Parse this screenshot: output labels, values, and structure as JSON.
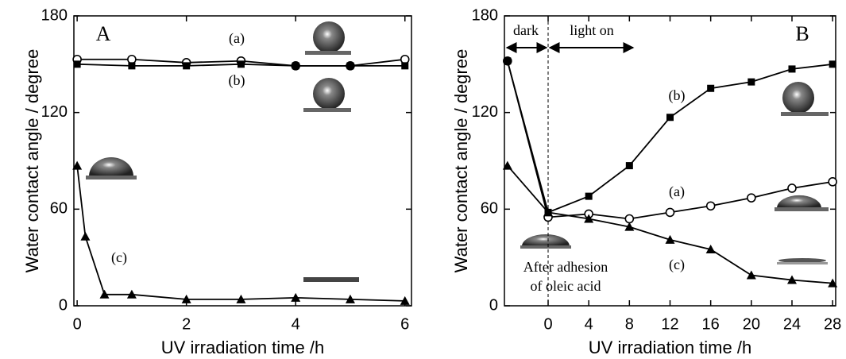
{
  "chart_data": [
    {
      "type": "line",
      "panel_label": "A",
      "x_label": "UV irradiation time /h",
      "y_label": "Water contact angle / degree",
      "xlim": [
        -0.06,
        6.12
      ],
      "xticks": [
        0,
        2,
        4,
        6
      ],
      "ylim": [
        0,
        180
      ],
      "yticks": [
        0,
        60,
        120,
        180
      ],
      "series": [
        {
          "name": "(a)",
          "marker": "circle",
          "color": "#000",
          "x": [
            0,
            1,
            2,
            3,
            4,
            5,
            6
          ],
          "values": [
            153,
            153,
            151,
            152,
            149,
            149,
            153
          ]
        },
        {
          "name": "(b)",
          "marker": "square",
          "color": "#000",
          "x": [
            0,
            1,
            2,
            3,
            4,
            5,
            6
          ],
          "values": [
            150,
            149,
            149,
            150,
            149,
            149,
            149
          ]
        },
        {
          "name": "(c)",
          "marker": "triangle",
          "color": "#000",
          "x": [
            0,
            0.15,
            0.5,
            1,
            2,
            3,
            4,
            5,
            6
          ],
          "values": [
            87,
            43,
            7,
            7,
            4,
            4,
            5,
            4,
            3
          ]
        }
      ]
    },
    {
      "type": "line",
      "panel_label": "B",
      "x_label": "UV irradiation time /h",
      "y_label": "Water contact angle / degree",
      "annotations": [
        "dark",
        "light on",
        "After adhesion",
        "of oleic acid"
      ],
      "xlim": [
        -4.3,
        28.3
      ],
      "xticks": [
        0,
        4,
        8,
        12,
        16,
        20,
        24,
        28
      ],
      "ylim": [
        0,
        180
      ],
      "yticks": [
        0,
        60,
        120,
        180
      ],
      "series": [
        {
          "name": "(a)",
          "marker": "circle",
          "color": "#000",
          "x": [
            -4,
            0,
            4,
            8,
            12,
            16,
            20,
            24,
            28
          ],
          "values": [
            152,
            55,
            57,
            54,
            58,
            62,
            67,
            73,
            77
          ]
        },
        {
          "name": "(b)",
          "marker": "square",
          "color": "#000",
          "x": [
            -4,
            0,
            4,
            8,
            12,
            16,
            20,
            24,
            28
          ],
          "values": [
            152,
            58,
            68,
            87,
            117,
            135,
            139,
            147,
            150
          ]
        },
        {
          "name": "(c)",
          "marker": "triangle",
          "color": "#000",
          "x": [
            -4,
            0,
            4,
            8,
            12,
            16,
            20,
            24,
            28
          ],
          "values": [
            87,
            58,
            54,
            49,
            41,
            35,
            19,
            16,
            14
          ]
        }
      ]
    }
  ]
}
